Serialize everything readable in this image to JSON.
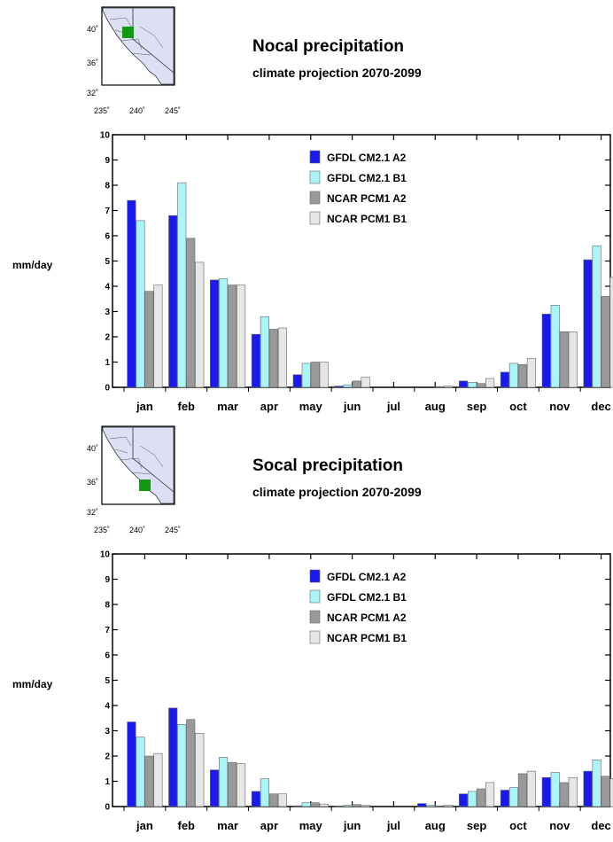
{
  "chart_data": [
    {
      "type": "bar",
      "title": "Nocal precipitation",
      "subtitle": "climate projection 2070-2099",
      "xlabel": "",
      "ylabel": "mm/day",
      "ylim": [
        0,
        10
      ],
      "yticks": [
        "0",
        "1",
        "2",
        "3",
        "4",
        "5",
        "6",
        "7",
        "8",
        "9",
        "10"
      ],
      "categories": [
        "jan",
        "feb",
        "mar",
        "apr",
        "may",
        "jun",
        "jul",
        "aug",
        "sep",
        "oct",
        "nov",
        "dec"
      ],
      "legend_position": "top-center",
      "series": [
        {
          "name": "GFDL CM2.1 A2",
          "color": "#1a1aee",
          "values": [
            7.4,
            6.8,
            4.25,
            2.1,
            0.5,
            0.05,
            0.0,
            0.0,
            0.25,
            0.6,
            2.9,
            5.05
          ]
        },
        {
          "name": "GFDL CM2.1 B1",
          "color": "#aaf5fa",
          "values": [
            6.6,
            8.1,
            4.3,
            2.8,
            0.95,
            0.1,
            0.0,
            0.0,
            0.2,
            0.95,
            3.25,
            5.6
          ]
        },
        {
          "name": "NCAR PCM1 A2",
          "color": "#999999",
          "values": [
            3.8,
            5.9,
            4.05,
            2.3,
            1.0,
            0.25,
            0.0,
            0.03,
            0.15,
            0.9,
            2.2,
            3.6
          ]
        },
        {
          "name": "NCAR PCM1 B1",
          "color": "#e6e6e6",
          "values": [
            4.05,
            4.95,
            4.05,
            2.35,
            1.0,
            0.4,
            0.0,
            0.05,
            0.35,
            1.15,
            2.2,
            4.35
          ]
        }
      ],
      "inset_map": {
        "lat_ticks": [
          "40˚",
          "36˚",
          "32˚"
        ],
        "lon_ticks": [
          "235˚",
          "240˚",
          "245˚"
        ],
        "marker_color": "#119911"
      }
    },
    {
      "type": "bar",
      "title": "Socal precipitation",
      "subtitle": "climate projection 2070-2099",
      "xlabel": "",
      "ylabel": "mm/day",
      "ylim": [
        0,
        10
      ],
      "yticks": [
        "0",
        "1",
        "2",
        "3",
        "4",
        "5",
        "6",
        "7",
        "8",
        "9",
        "10"
      ],
      "categories": [
        "jan",
        "feb",
        "mar",
        "apr",
        "may",
        "jun",
        "jul",
        "aug",
        "sep",
        "oct",
        "nov",
        "dec"
      ],
      "legend_position": "top-center",
      "series": [
        {
          "name": "GFDL CM2.1 A2",
          "color": "#1a1aee",
          "values": [
            3.35,
            3.9,
            1.45,
            0.6,
            0.03,
            0.02,
            0.0,
            0.12,
            0.5,
            0.65,
            1.15,
            1.4
          ]
        },
        {
          "name": "GFDL CM2.1 B1",
          "color": "#aaf5fa",
          "values": [
            2.75,
            3.25,
            1.95,
            1.1,
            0.15,
            0.05,
            0.0,
            0.05,
            0.6,
            0.75,
            1.35,
            1.85
          ]
        },
        {
          "name": "NCAR PCM1 A2",
          "color": "#999999",
          "values": [
            2.0,
            3.45,
            1.75,
            0.5,
            0.15,
            0.08,
            0.0,
            0.03,
            0.7,
            1.3,
            0.95,
            1.2
          ]
        },
        {
          "name": "NCAR PCM1 B1",
          "color": "#e6e6e6",
          "values": [
            2.1,
            2.9,
            1.7,
            0.5,
            0.1,
            0.05,
            0.0,
            0.05,
            0.95,
            1.4,
            1.15,
            1.1
          ]
        }
      ],
      "inset_map": {
        "lat_ticks": [
          "40˚",
          "36˚",
          "32˚"
        ],
        "lon_ticks": [
          "235˚",
          "240˚",
          "245˚"
        ],
        "marker_color": "#119911"
      }
    }
  ]
}
